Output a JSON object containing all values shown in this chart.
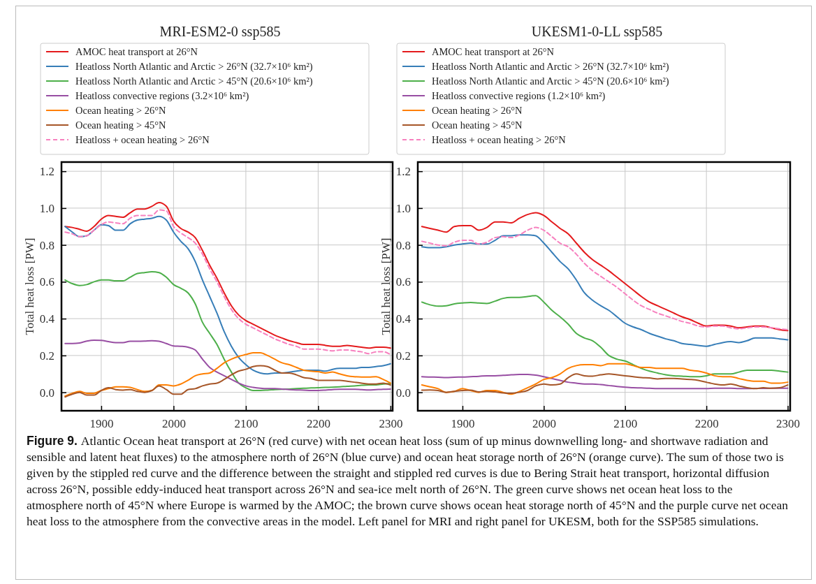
{
  "chart_data": [
    {
      "type": "line",
      "title": "MRI-ESM2-0 ssp585",
      "ylabel": "Total heat loss [PW]",
      "legend": "top",
      "grid": true,
      "xlim": [
        1845,
        2303
      ],
      "xticks": [
        1900,
        2000,
        2100,
        2200,
        2300
      ],
      "ylim": [
        -0.1,
        1.25
      ],
      "yticks": [
        {
          "value": 0,
          "label": "0.0"
        },
        {
          "value": 0.2,
          "label": "0.2"
        },
        {
          "value": 0.4,
          "label": "0.4"
        },
        {
          "value": 0.6,
          "label": "0.6"
        },
        {
          "value": 0.8,
          "label": "0.8"
        },
        {
          "value": 1.0,
          "label": "1.0"
        },
        {
          "value": 1.2,
          "label": "1.2"
        }
      ],
      "x": [
        1850,
        1860,
        1870,
        1880,
        1890,
        1900,
        1910,
        1920,
        1930,
        1940,
        1950,
        1960,
        1970,
        1980,
        1990,
        2000,
        2010,
        2020,
        2030,
        2040,
        2050,
        2060,
        2070,
        2080,
        2090,
        2100,
        2110,
        2120,
        2130,
        2140,
        2150,
        2160,
        2170,
        2180,
        2190,
        2200,
        2210,
        2220,
        2230,
        2240,
        2250,
        2260,
        2270,
        2280,
        2290,
        2300
      ],
      "annotations": [
        "Figure 9.",
        "Atlantic Ocean heat transport at 26°N (red curve) with net ocean heat loss (sum of up minus downwelling long- and shortwave radiation and sensible and latent heat fluxes) to the atmosphere north of 26°N (blue curve) and ocean heat storage north of 26°N (orange curve). The sum of those two is given by the stippled red curve and the difference between the straight and stippled red curves is due to Bering Strait heat transport, horizontal diffusion across 26°N, possible eddy-induced heat transport across 26°N and sea-ice melt north of 26°N. The green curve shows net ocean heat loss to the atmosphere north of 45°N where Europe is warmed by the AMOC; the brown curve shows ocean heat storage north of 45°N and the purple curve net ocean heat loss to the atmosphere from the convective areas in the model. Left panel for MRI and right panel for UKESM, both for the SSP585 simulations."
      ],
      "series": [
        {
          "name": "AMOC heat transport at 26°N",
          "color": "#e41a1c",
          "values": [
            0.9,
            0.895,
            0.885,
            0.875,
            0.9,
            0.94,
            0.96,
            0.955,
            0.95,
            0.975,
            0.995,
            0.995,
            1.01,
            1.03,
            1.01,
            0.93,
            0.89,
            0.87,
            0.84,
            0.77,
            0.69,
            0.62,
            0.54,
            0.47,
            0.42,
            0.39,
            0.37,
            0.35,
            0.33,
            0.31,
            0.295,
            0.28,
            0.27,
            0.26,
            0.26,
            0.26,
            0.255,
            0.25,
            0.25,
            0.255,
            0.25,
            0.245,
            0.24,
            0.245,
            0.245,
            0.24
          ]
        },
        {
          "name": "Heatloss North Atlantic and Arctic > 26°N (32.7×10⁶ km²)",
          "color": "#377eb8",
          "values": [
            0.9,
            0.87,
            0.845,
            0.85,
            0.88,
            0.91,
            0.905,
            0.88,
            0.88,
            0.915,
            0.935,
            0.94,
            0.945,
            0.955,
            0.935,
            0.87,
            0.82,
            0.78,
            0.71,
            0.61,
            0.52,
            0.43,
            0.33,
            0.25,
            0.19,
            0.15,
            0.12,
            0.105,
            0.1,
            0.105,
            0.105,
            0.11,
            0.115,
            0.12,
            0.12,
            0.12,
            0.115,
            0.125,
            0.13,
            0.13,
            0.13,
            0.135,
            0.135,
            0.14,
            0.145,
            0.155
          ]
        },
        {
          "name": "Heatloss North Atlantic and Arctic > 45°N (20.6×10⁶ km²)",
          "color": "#4daf4a",
          "values": [
            0.61,
            0.59,
            0.58,
            0.585,
            0.6,
            0.61,
            0.61,
            0.605,
            0.605,
            0.625,
            0.645,
            0.65,
            0.655,
            0.65,
            0.625,
            0.585,
            0.565,
            0.54,
            0.48,
            0.38,
            0.32,
            0.26,
            0.18,
            0.11,
            0.05,
            0.025,
            0.01,
            0.01,
            0.012,
            0.015,
            0.017,
            0.018,
            0.02,
            0.022,
            0.024,
            0.025,
            0.027,
            0.028,
            0.03,
            0.033,
            0.035,
            0.038,
            0.04,
            0.04,
            0.045,
            0.048
          ]
        },
        {
          "name": "Heatloss convective regions (3.2×10⁶ km²)",
          "color": "#984ea3",
          "values": [
            0.265,
            0.265,
            0.268,
            0.278,
            0.283,
            0.282,
            0.275,
            0.27,
            0.27,
            0.277,
            0.277,
            0.278,
            0.28,
            0.277,
            0.265,
            0.252,
            0.25,
            0.245,
            0.23,
            0.18,
            0.135,
            0.11,
            0.09,
            0.07,
            0.05,
            0.035,
            0.027,
            0.022,
            0.02,
            0.02,
            0.018,
            0.015,
            0.013,
            0.012,
            0.01,
            0.01,
            0.012,
            0.015,
            0.017,
            0.017,
            0.017,
            0.015,
            0.013,
            0.015,
            0.017,
            0.018
          ]
        },
        {
          "name": "Ocean heating > 26°N",
          "color": "#ff7f00",
          "values": [
            -0.02,
            -0.005,
            0.005,
            -0.005,
            -0.005,
            0.01,
            0.02,
            0.03,
            0.03,
            0.027,
            0.015,
            0.005,
            0.01,
            0.04,
            0.04,
            0.035,
            0.045,
            0.065,
            0.09,
            0.1,
            0.105,
            0.13,
            0.16,
            0.18,
            0.195,
            0.205,
            0.215,
            0.215,
            0.2,
            0.18,
            0.16,
            0.15,
            0.135,
            0.12,
            0.115,
            0.112,
            0.105,
            0.11,
            0.1,
            0.09,
            0.085,
            0.083,
            0.083,
            0.085,
            0.07,
            0.05
          ]
        },
        {
          "name": "Ocean heating > 45°N",
          "color": "#a65628",
          "values": [
            -0.025,
            -0.01,
            0.0,
            -0.015,
            -0.015,
            0.01,
            0.025,
            0.015,
            0.012,
            0.015,
            0.005,
            0.0,
            0.01,
            0.035,
            0.015,
            -0.01,
            -0.01,
            0.015,
            0.02,
            0.035,
            0.045,
            0.05,
            0.07,
            0.095,
            0.115,
            0.125,
            0.14,
            0.145,
            0.14,
            0.12,
            0.105,
            0.105,
            0.095,
            0.08,
            0.075,
            0.065,
            0.065,
            0.065,
            0.065,
            0.06,
            0.055,
            0.05,
            0.045,
            0.045,
            0.05,
            0.04
          ]
        },
        {
          "name": "Heatloss + ocean heating > 26°N",
          "color": "#f781bf",
          "line_style": "dashed",
          "values": [
            0.87,
            0.86,
            0.845,
            0.85,
            0.88,
            0.91,
            0.925,
            0.92,
            0.915,
            0.945,
            0.96,
            0.96,
            0.96,
            0.99,
            0.985,
            0.9,
            0.865,
            0.84,
            0.81,
            0.75,
            0.67,
            0.6,
            0.52,
            0.45,
            0.4,
            0.37,
            0.35,
            0.33,
            0.31,
            0.29,
            0.275,
            0.26,
            0.25,
            0.235,
            0.235,
            0.235,
            0.23,
            0.225,
            0.23,
            0.23,
            0.225,
            0.22,
            0.21,
            0.22,
            0.22,
            0.205
          ]
        }
      ]
    },
    {
      "type": "line",
      "title": "UKESM1-0-LL ssp585",
      "ylabel": "Total heat loss [PW]",
      "legend": "top",
      "grid": true,
      "xlim": [
        1845,
        2303
      ],
      "xticks": [
        1900,
        2000,
        2100,
        2200,
        2300
      ],
      "ylim": [
        -0.1,
        1.25
      ],
      "yticks": [
        {
          "value": 0,
          "label": "0.0"
        },
        {
          "value": 0.2,
          "label": "0.2"
        },
        {
          "value": 0.4,
          "label": "0.4"
        },
        {
          "value": 0.6,
          "label": "0.6"
        },
        {
          "value": 0.8,
          "label": "0.8"
        },
        {
          "value": 1.0,
          "label": "1.0"
        },
        {
          "value": 1.2,
          "label": "1.2"
        }
      ],
      "x": [
        1850,
        1860,
        1870,
        1880,
        1890,
        1900,
        1910,
        1920,
        1930,
        1940,
        1950,
        1960,
        1970,
        1980,
        1990,
        2000,
        2010,
        2020,
        2030,
        2040,
        2050,
        2060,
        2070,
        2080,
        2090,
        2100,
        2110,
        2120,
        2130,
        2140,
        2150,
        2160,
        2170,
        2180,
        2190,
        2200,
        2210,
        2220,
        2230,
        2240,
        2250,
        2260,
        2270,
        2280,
        2290,
        2300
      ],
      "series": [
        {
          "name": "AMOC heat transport at 26°N",
          "color": "#e41a1c",
          "values": [
            0.9,
            0.89,
            0.88,
            0.87,
            0.9,
            0.905,
            0.905,
            0.88,
            0.895,
            0.925,
            0.925,
            0.92,
            0.945,
            0.965,
            0.975,
            0.96,
            0.925,
            0.89,
            0.86,
            0.81,
            0.76,
            0.72,
            0.69,
            0.66,
            0.625,
            0.59,
            0.555,
            0.52,
            0.49,
            0.47,
            0.45,
            0.43,
            0.41,
            0.395,
            0.375,
            0.36,
            0.365,
            0.365,
            0.36,
            0.35,
            0.355,
            0.36,
            0.36,
            0.35,
            0.34,
            0.335
          ]
        },
        {
          "name": "Heatloss North Atlantic and Arctic > 26°N (32.7×10⁶ km²)",
          "color": "#377eb8",
          "values": [
            0.79,
            0.785,
            0.785,
            0.79,
            0.8,
            0.805,
            0.81,
            0.805,
            0.805,
            0.825,
            0.85,
            0.85,
            0.855,
            0.855,
            0.85,
            0.81,
            0.76,
            0.71,
            0.67,
            0.61,
            0.54,
            0.5,
            0.47,
            0.445,
            0.41,
            0.375,
            0.355,
            0.34,
            0.32,
            0.305,
            0.29,
            0.28,
            0.265,
            0.26,
            0.255,
            0.25,
            0.26,
            0.27,
            0.275,
            0.27,
            0.28,
            0.295,
            0.295,
            0.295,
            0.29,
            0.285
          ]
        },
        {
          "name": "Heatloss North Atlantic and Arctic > 45°N (20.6×10⁶ km²)",
          "color": "#4daf4a",
          "values": [
            0.49,
            0.475,
            0.468,
            0.47,
            0.48,
            0.485,
            0.488,
            0.485,
            0.482,
            0.495,
            0.51,
            0.515,
            0.515,
            0.52,
            0.525,
            0.49,
            0.445,
            0.41,
            0.37,
            0.32,
            0.295,
            0.28,
            0.245,
            0.2,
            0.18,
            0.17,
            0.15,
            0.13,
            0.115,
            0.105,
            0.095,
            0.09,
            0.088,
            0.085,
            0.085,
            0.09,
            0.1,
            0.1,
            0.1,
            0.11,
            0.12,
            0.12,
            0.12,
            0.12,
            0.115,
            0.11
          ]
        },
        {
          "name": "Heatloss convective regions (1.2×10⁶ km²)",
          "color": "#984ea3",
          "values": [
            0.085,
            0.083,
            0.082,
            0.08,
            0.082,
            0.083,
            0.085,
            0.087,
            0.09,
            0.09,
            0.092,
            0.095,
            0.097,
            0.097,
            0.093,
            0.085,
            0.075,
            0.065,
            0.055,
            0.05,
            0.045,
            0.045,
            0.042,
            0.037,
            0.032,
            0.028,
            0.025,
            0.024,
            0.022,
            0.02,
            0.02,
            0.02,
            0.02,
            0.02,
            0.02,
            0.02,
            0.022,
            0.022,
            0.022,
            0.02,
            0.02,
            0.021,
            0.021,
            0.022,
            0.022,
            0.022
          ]
        },
        {
          "name": "Ocean heating > 26°N",
          "color": "#ff7f00",
          "values": [
            0.04,
            0.03,
            0.02,
            0.0,
            0.005,
            0.02,
            0.01,
            0.0,
            0.01,
            0.01,
            0.0,
            -0.01,
            0.005,
            0.025,
            0.045,
            0.07,
            0.08,
            0.1,
            0.13,
            0.145,
            0.15,
            0.15,
            0.145,
            0.155,
            0.155,
            0.155,
            0.145,
            0.135,
            0.135,
            0.13,
            0.13,
            0.13,
            0.13,
            0.12,
            0.115,
            0.105,
            0.09,
            0.085,
            0.085,
            0.075,
            0.065,
            0.06,
            0.06,
            0.05,
            0.05,
            0.055
          ]
        },
        {
          "name": "Ocean heating > 45°N",
          "color": "#a65628",
          "values": [
            0.012,
            0.013,
            0.01,
            0.0,
            0.005,
            0.01,
            0.012,
            0.002,
            0.005,
            0.002,
            -0.003,
            -0.005,
            0.0,
            0.01,
            0.035,
            0.045,
            0.04,
            0.045,
            0.08,
            0.1,
            0.09,
            0.088,
            0.095,
            0.1,
            0.095,
            0.09,
            0.085,
            0.08,
            0.078,
            0.073,
            0.075,
            0.075,
            0.073,
            0.07,
            0.065,
            0.055,
            0.045,
            0.04,
            0.045,
            0.035,
            0.025,
            0.02,
            0.025,
            0.022,
            0.025,
            0.04
          ]
        },
        {
          "name": "Heatloss + ocean heating > 26°N",
          "color": "#f781bf",
          "line_style": "dashed",
          "values": [
            0.82,
            0.81,
            0.8,
            0.795,
            0.815,
            0.825,
            0.825,
            0.805,
            0.815,
            0.84,
            0.845,
            0.84,
            0.855,
            0.88,
            0.895,
            0.88,
            0.845,
            0.81,
            0.79,
            0.75,
            0.7,
            0.66,
            0.63,
            0.6,
            0.57,
            0.535,
            0.5,
            0.47,
            0.45,
            0.43,
            0.415,
            0.4,
            0.385,
            0.375,
            0.36,
            0.355,
            0.36,
            0.36,
            0.35,
            0.345,
            0.35,
            0.355,
            0.355,
            0.35,
            0.345,
            0.34
          ]
        }
      ]
    }
  ]
}
